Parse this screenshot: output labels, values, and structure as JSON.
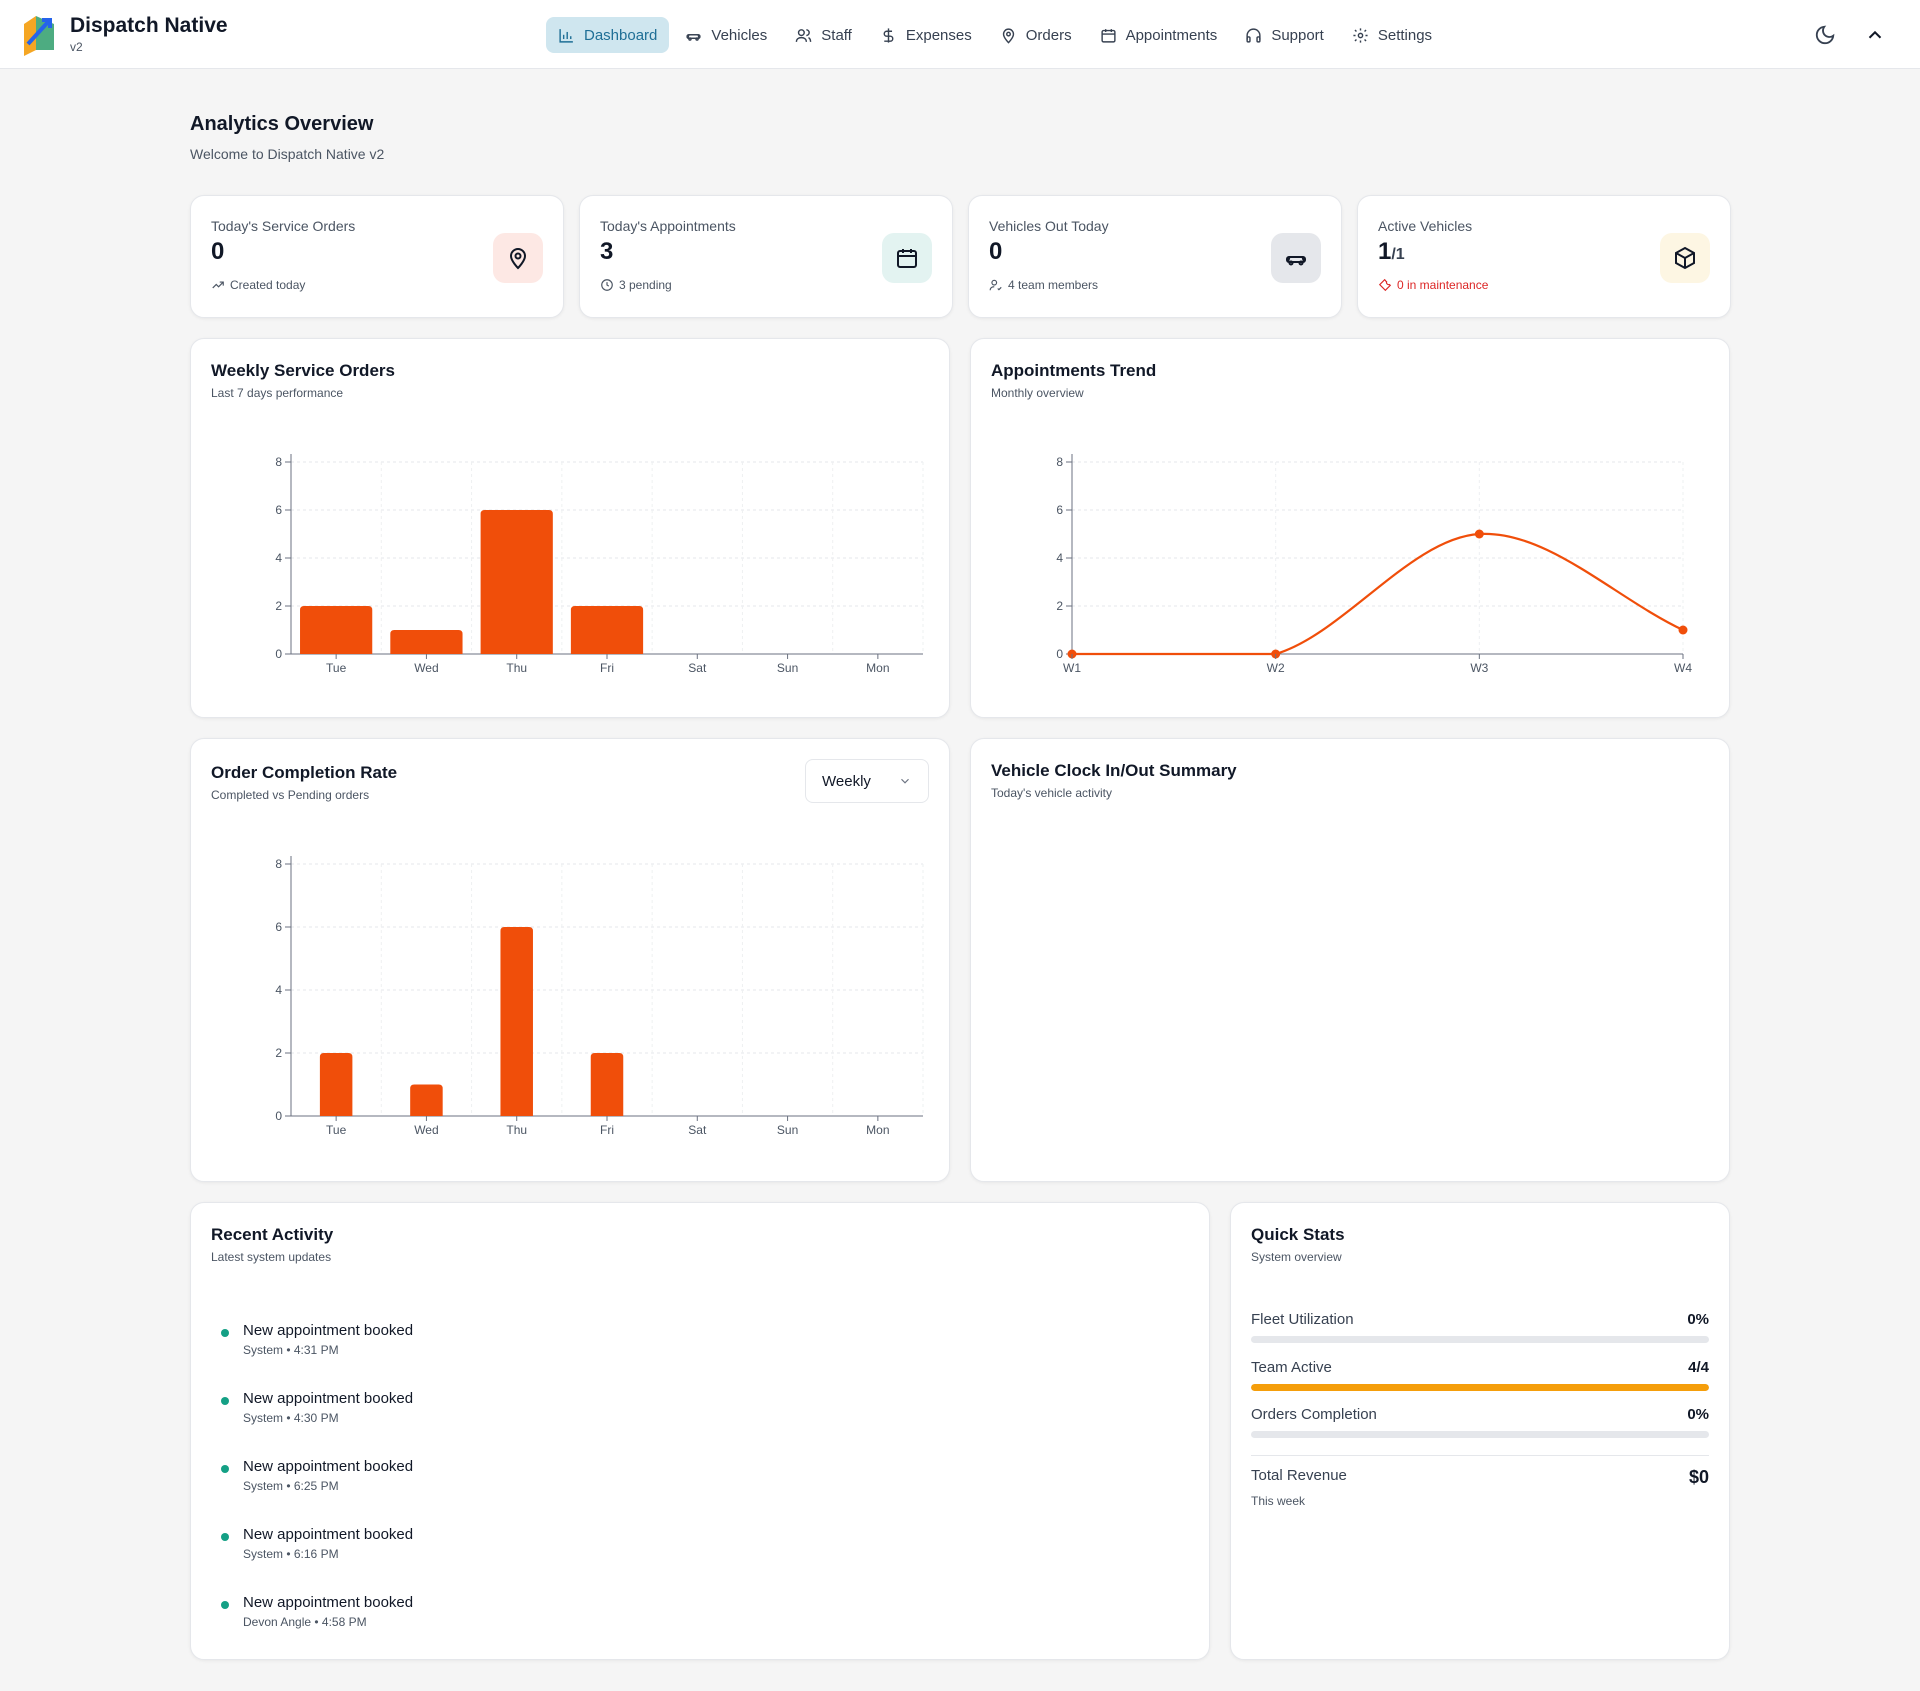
{
  "app": {
    "name": "Dispatch Native",
    "version": "v2"
  },
  "nav": [
    {
      "label": "Dashboard",
      "icon": "bar-chart-icon",
      "active": true
    },
    {
      "label": "Vehicles",
      "icon": "car-icon"
    },
    {
      "label": "Staff",
      "icon": "users-icon"
    },
    {
      "label": "Expenses",
      "icon": "dollar-icon"
    },
    {
      "label": "Orders",
      "icon": "map-pin-icon"
    },
    {
      "label": "Appointments",
      "icon": "calendar-icon"
    },
    {
      "label": "Support",
      "icon": "headphones-icon"
    },
    {
      "label": "Settings",
      "icon": "gear-icon"
    }
  ],
  "page": {
    "title": "Analytics Overview",
    "subtitle": "Welcome to Dispatch Native v2"
  },
  "stats": [
    {
      "label": "Today's Service Orders",
      "value": "0",
      "foot": "Created today",
      "icon": "map-pin-icon",
      "icon_bg": "#fde8e4"
    },
    {
      "label": "Today's Appointments",
      "value": "3",
      "foot": "3 pending",
      "icon": "calendar-icon",
      "icon_bg": "#e3f3f1"
    },
    {
      "label": "Vehicles Out Today",
      "value": "0",
      "foot": "4 team members",
      "icon": "car-icon",
      "icon_bg": "#e5e7eb"
    },
    {
      "label": "Active Vehicles",
      "value": "1",
      "value_suffix": "/1",
      "foot": "0 in maintenance",
      "icon": "box-icon",
      "icon_bg": "#fdf6e3"
    }
  ],
  "weekly_orders": {
    "title": "Weekly Service Orders",
    "subtitle": "Last 7 days performance"
  },
  "appointments_trend": {
    "title": "Appointments Trend",
    "subtitle": "Monthly overview"
  },
  "completion_rate": {
    "title": "Order Completion Rate",
    "subtitle": "Completed vs Pending orders",
    "period": "Weekly"
  },
  "clock_summary": {
    "title": "Vehicle Clock In/Out Summary",
    "subtitle": "Today's vehicle activity"
  },
  "recent_activity": {
    "title": "Recent Activity",
    "subtitle": "Latest system updates",
    "items": [
      {
        "title": "New appointment booked",
        "meta": "System • 4:31 PM"
      },
      {
        "title": "New appointment booked",
        "meta": "System • 4:30 PM"
      },
      {
        "title": "New appointment booked",
        "meta": "System • 6:25 PM"
      },
      {
        "title": "New appointment booked",
        "meta": "System • 6:16 PM"
      },
      {
        "title": "New appointment booked",
        "meta": "Devon Angle • 4:58 PM"
      }
    ]
  },
  "quick_stats": {
    "title": "Quick Stats",
    "subtitle": "System overview",
    "rows": [
      {
        "label": "Fleet Utilization",
        "value": "0%",
        "fill": 0
      },
      {
        "label": "Team Active",
        "value": "4/4",
        "fill": 1
      },
      {
        "label": "Orders Completion",
        "value": "0%",
        "fill": 0
      }
    ],
    "revenue": {
      "label": "Total Revenue",
      "value": "$0",
      "sub": "This week"
    }
  },
  "colors": {
    "accent": "#f04e0a",
    "teal": "#14a085",
    "amber": "#f59e0b",
    "red": "#dc2626"
  },
  "chart_data": [
    {
      "type": "bar",
      "title": "Weekly Service Orders",
      "categories": [
        "Tue",
        "Wed",
        "Thu",
        "Fri",
        "Sat",
        "Sun",
        "Mon"
      ],
      "values": [
        2,
        1,
        6,
        2,
        0,
        0,
        0
      ],
      "ylim": [
        0,
        8
      ],
      "yticks": [
        0,
        2,
        4,
        6,
        8
      ],
      "grid": true
    },
    {
      "type": "line",
      "title": "Appointments Trend",
      "categories": [
        "W1",
        "W2",
        "W3",
        "W4"
      ],
      "values": [
        0,
        0,
        5,
        1
      ],
      "ylim": [
        0,
        8
      ],
      "yticks": [
        0,
        2,
        4,
        6,
        8
      ],
      "grid": true
    },
    {
      "type": "bar",
      "title": "Order Completion Rate",
      "categories": [
        "Tue",
        "Wed",
        "Thu",
        "Fri",
        "Sat",
        "Sun",
        "Mon"
      ],
      "values": [
        2,
        1,
        6,
        2,
        0,
        0,
        0
      ],
      "ylim": [
        0,
        8
      ],
      "yticks": [
        0,
        2,
        4,
        6,
        8
      ],
      "grid": true
    }
  ]
}
